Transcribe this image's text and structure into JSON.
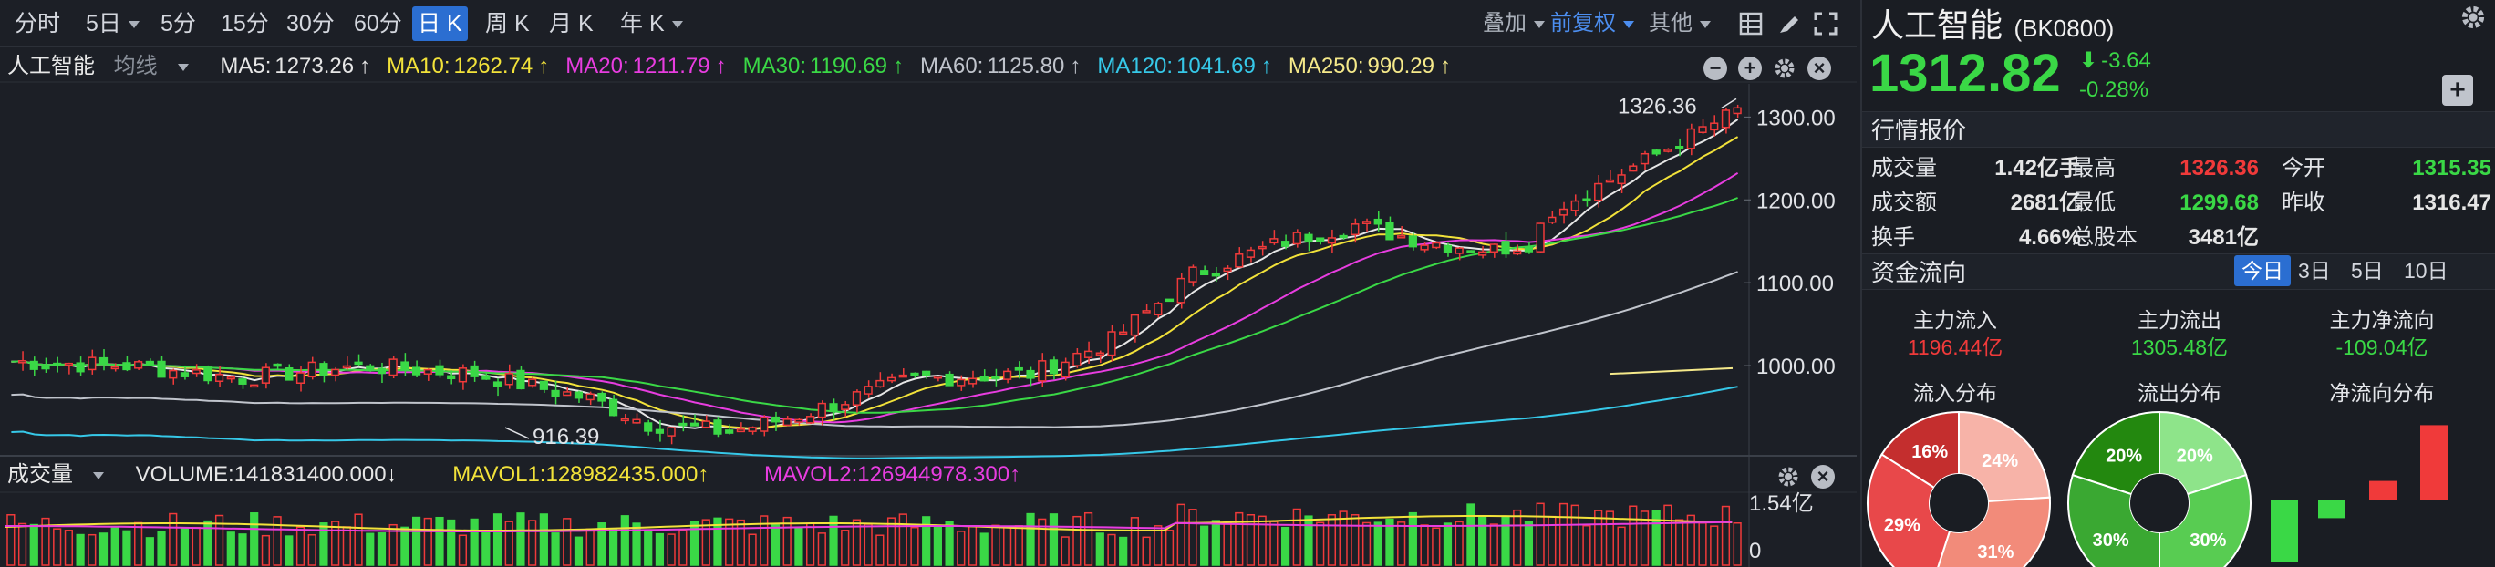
{
  "toolbar": {
    "periods": [
      {
        "label": "分时",
        "caret": false
      },
      {
        "label": "5日",
        "caret": true
      },
      {
        "label": "5分",
        "caret": false
      },
      {
        "label": "15分",
        "caret": false
      },
      {
        "label": "30分",
        "caret": false
      },
      {
        "label": "60分",
        "caret": false
      },
      {
        "label": "日 K",
        "caret": false,
        "active": true
      },
      {
        "label": "周 K",
        "caret": false
      },
      {
        "label": "月 K",
        "caret": false
      },
      {
        "label": "年 K",
        "caret": true
      }
    ],
    "overlay_label": "叠加",
    "adjust_label": "前复权",
    "other_label": "其他",
    "colors": {
      "active": "#2b6ed1",
      "adjust": "#4c8ef0"
    }
  },
  "main_panel": {
    "name": "人工智能",
    "ma_selector": "均线",
    "ma": [
      {
        "label": "MA5:",
        "value": "1273.26",
        "arrow": "↑",
        "color": "#e6e6e6"
      },
      {
        "label": "MA10:",
        "value": "1262.74",
        "arrow": "↑",
        "color": "#f2e23a"
      },
      {
        "label": "MA20:",
        "value": "1211.79",
        "arrow": "↑",
        "color": "#e83de0"
      },
      {
        "label": "MA30:",
        "value": "1190.69",
        "arrow": "↑",
        "color": "#3ad846"
      },
      {
        "label": "MA60:",
        "value": "1125.80",
        "arrow": "↑",
        "color": "#c0c4cc"
      },
      {
        "label": "MA120:",
        "value": "1041.69",
        "arrow": "↑",
        "color": "#36c8e8"
      },
      {
        "label": "MA250:",
        "value": "990.29",
        "arrow": "↑",
        "color": "#f5e98a"
      }
    ],
    "y_ticks": [
      "1300.00",
      "1200.00",
      "1100.00",
      "1000.00"
    ],
    "high_label": "1326.36",
    "low_label": "916.39"
  },
  "volume_panel": {
    "title": "成交量",
    "volume": "VOLUME:141831400.000↓",
    "mavol1": "MAVOL1:128982435.000↑",
    "mavol2": "MAVOL2:126944978.300↑",
    "y_ticks": [
      "1.54亿",
      "0"
    ],
    "colors": {
      "volume": "#e6e6e6",
      "mavol1": "#f2e23a",
      "mavol2": "#e83de0"
    }
  },
  "side": {
    "title": "人工智能",
    "code": "(BK0800)",
    "price": "1312.82",
    "change": "-3.64",
    "change_pct": "-0.28%",
    "quote_title": "行情报价",
    "quote_rows": [
      [
        {
          "k": "成交量",
          "v": "1.42亿手",
          "c": "#e6e6e6"
        },
        {
          "k": "最高",
          "v": "1326.36",
          "c": "#f03a3a"
        },
        {
          "k": "今开",
          "v": "1315.35",
          "c": "#3ad846"
        }
      ],
      [
        {
          "k": "成交额",
          "v": "2681亿",
          "c": "#e6e6e6"
        },
        {
          "k": "最低",
          "v": "1299.68",
          "c": "#3ad846"
        },
        {
          "k": "昨收",
          "v": "1316.47",
          "c": "#e6e6e6"
        }
      ],
      [
        {
          "k": "换手",
          "v": "4.66%",
          "c": "#e6e6e6"
        },
        {
          "k": "总股本",
          "v": "3481亿",
          "c": "#e6e6e6"
        }
      ]
    ],
    "flow_title": "资金流向",
    "flow_tabs": [
      {
        "label": "今日",
        "active": true
      },
      {
        "label": "3日"
      },
      {
        "label": "5日"
      },
      {
        "label": "10日"
      }
    ],
    "flow_cols": [
      {
        "title": "主力流入",
        "value": "1196.44亿",
        "color": "#f03a3a",
        "dist": "流入分布"
      },
      {
        "title": "主力流出",
        "value": "1305.48亿",
        "color": "#3ad846",
        "dist": "流出分布"
      },
      {
        "title": "主力净流向",
        "value": "-109.04亿",
        "color": "#3ad846",
        "dist": "净流向分布"
      }
    ],
    "inflow_pie": [
      {
        "pct": 24,
        "label": "24%",
        "color": "#f7b3a8"
      },
      {
        "pct": 31,
        "label": "31%",
        "color": "#f28b7a"
      },
      {
        "pct": 29,
        "label": "29%",
        "color": "#e8484a"
      },
      {
        "pct": 16,
        "label": "16%",
        "color": "#c42e2e"
      }
    ],
    "outflow_pie": [
      {
        "pct": 20,
        "label": "20%",
        "color": "#8ee48a"
      },
      {
        "pct": 30,
        "label": "30%",
        "color": "#58cc52"
      },
      {
        "pct": 30,
        "label": "30%",
        "color": "#3aa832"
      },
      {
        "pct": 20,
        "label": "20%",
        "color": "#23880f"
      }
    ],
    "net_bars": [
      -40,
      -12,
      12,
      48
    ]
  }
}
